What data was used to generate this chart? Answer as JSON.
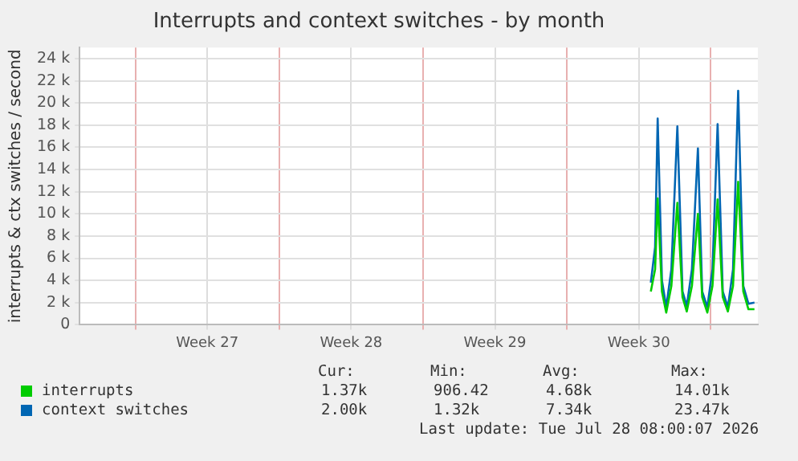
{
  "chart_data": {
    "type": "line",
    "title": "Interrupts and context switches - by month",
    "ylabel": "interrupts & ctx switches / second",
    "xlim": [
      "2026-06-25T12:00",
      "2026-07-28T12:00"
    ],
    "xticks": [
      {
        "value": "2026-06-28T05:00",
        "label": null
      },
      {
        "value": "2026-07-01T17:00",
        "label": "Week 27"
      },
      {
        "value": "2026-07-05T05:00",
        "label": null
      },
      {
        "value": "2026-07-08T17:00",
        "label": "Week 28"
      },
      {
        "value": "2026-07-12T05:00",
        "label": null
      },
      {
        "value": "2026-07-15T17:00",
        "label": "Week 29"
      },
      {
        "value": "2026-07-19T05:00",
        "label": null
      },
      {
        "value": "2026-07-22T17:00",
        "label": "Week 30"
      },
      {
        "value": "2026-07-26T05:00",
        "label": null
      }
    ],
    "ylim": [
      0,
      25000
    ],
    "yticks": [
      {
        "value": 0,
        "label": "0"
      },
      {
        "value": 2000,
        "label": "2 k"
      },
      {
        "value": 4000,
        "label": "4 k"
      },
      {
        "value": 6000,
        "label": "6 k"
      },
      {
        "value": 8000,
        "label": "8 k"
      },
      {
        "value": 10000,
        "label": "10 k"
      },
      {
        "value": 12000,
        "label": "12 k"
      },
      {
        "value": 14000,
        "label": "14 k"
      },
      {
        "value": 16000,
        "label": "16 k"
      },
      {
        "value": 18000,
        "label": "18 k"
      },
      {
        "value": 20000,
        "label": "20 k"
      },
      {
        "value": 22000,
        "label": "22 k"
      },
      {
        "value": 24000,
        "label": "24 k"
      }
    ],
    "x": [
      "2026-07-23T07:00",
      "2026-07-23T12:00",
      "2026-07-23T15:00",
      "2026-07-23T20:00",
      "2026-07-24T01:00",
      "2026-07-24T07:00",
      "2026-07-24T14:00",
      "2026-07-24T20:00",
      "2026-07-25T01:00",
      "2026-07-25T07:00",
      "2026-07-25T14:00",
      "2026-07-25T19:00",
      "2026-07-26T01:00",
      "2026-07-26T07:00",
      "2026-07-26T13:00",
      "2026-07-26T19:00",
      "2026-07-27T01:00",
      "2026-07-27T07:00",
      "2026-07-27T13:00",
      "2026-07-27T19:00",
      "2026-07-28T01:00",
      "2026-07-28T08:00"
    ],
    "series": [
      {
        "name": "interrupts",
        "color": "#00cc00",
        "values": [
          3000,
          5000,
          11400,
          3000,
          1100,
          3500,
          11000,
          2500,
          1200,
          3500,
          10000,
          2500,
          1100,
          3500,
          11300,
          2500,
          1200,
          3500,
          12900,
          3000,
          1400,
          1400
        ]
      },
      {
        "name": "context switches",
        "color": "#0066b3",
        "values": [
          3800,
          7000,
          18600,
          4000,
          1600,
          5000,
          17900,
          3000,
          1700,
          5000,
          15900,
          3000,
          1600,
          5000,
          18100,
          3000,
          1600,
          5000,
          21100,
          3500,
          1900,
          2000
        ]
      }
    ],
    "grid": true,
    "legend": "bottom",
    "marker": "none",
    "line_style": "solid",
    "annotations": [
      "Cur:",
      "Min:",
      "Avg:",
      "Max:",
      "1.37k",
      "906.42",
      "4.68k",
      "14.01k",
      "2.00k",
      "1.32k",
      "7.34k",
      "23.47k",
      "Last update: Tue Jul 28 08:00:07 2026"
    ]
  }
}
